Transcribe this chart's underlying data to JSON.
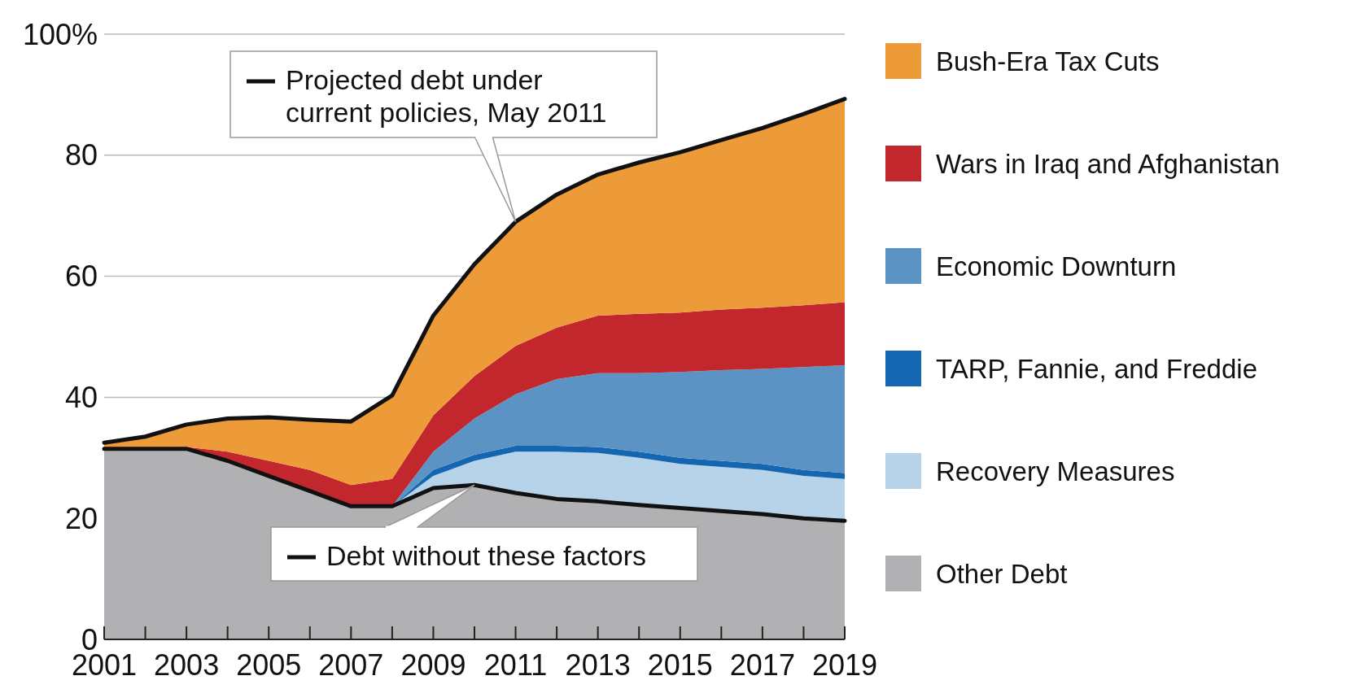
{
  "chart_data": {
    "type": "area",
    "stacked": true,
    "x": [
      2001,
      2002,
      2003,
      2004,
      2005,
      2006,
      2007,
      2008,
      2009,
      2010,
      2011,
      2012,
      2013,
      2014,
      2015,
      2016,
      2017,
      2018,
      2019
    ],
    "series": [
      {
        "name": "Other Debt",
        "color": "#b1b1b3",
        "values": [
          31.5,
          31.5,
          31.5,
          29.5,
          27,
          24.5,
          22,
          22,
          25,
          25.5,
          24.2,
          23.2,
          22.8,
          22.2,
          21.7,
          21.2,
          20.7,
          20,
          19.6
        ]
      },
      {
        "name": "Recovery Measures",
        "color": "#b7d3ea",
        "values": [
          0,
          0,
          0,
          0,
          0,
          0,
          0,
          0,
          2,
          4,
          6.8,
          7.8,
          8,
          7.8,
          7.3,
          7.3,
          7.3,
          7,
          6.9
        ]
      },
      {
        "name": "TARP, Fannie, and Freddie",
        "color": "#1466b0",
        "values": [
          0,
          0,
          0,
          0,
          0,
          0,
          0,
          0,
          1,
          1,
          1,
          1,
          1,
          1,
          1,
          1,
          1,
          1,
          1
        ]
      },
      {
        "name": "Economic Downturn",
        "color": "#5b93c5",
        "values": [
          0,
          0,
          0,
          0,
          0,
          0,
          0,
          0,
          3,
          6,
          8.5,
          11,
          12.2,
          13,
          14.2,
          15,
          15.7,
          17,
          17.8
        ]
      },
      {
        "name": "Wars in Iraq and Afghanistan",
        "color": "#c1272d",
        "values": [
          0,
          0.2,
          0.3,
          1.5,
          2.5,
          3.5,
          3.5,
          4.5,
          6,
          7,
          8,
          8.5,
          9.5,
          9.8,
          9.8,
          10,
          10.1,
          10.2,
          10.4
        ]
      },
      {
        "name": "Bush-Era Tax Cuts",
        "color": "#ec9b38",
        "values": [
          1,
          1.8,
          3.7,
          5.5,
          7.2,
          8.3,
          10.5,
          13.8,
          16.5,
          18.5,
          20.5,
          22,
          23.3,
          25,
          26.5,
          28,
          29.7,
          31.6,
          33.6
        ]
      }
    ],
    "annotations": [
      {
        "text": "Projected debt under current policies, May 2011",
        "x": 2011,
        "y": 69
      },
      {
        "text": "Debt without these factors",
        "x": 2010,
        "y": 25.5
      }
    ],
    "xlim": [
      2001,
      2019
    ],
    "xticks": [
      2001,
      {
        "value": 2002,
        "label": null
      },
      2003,
      {
        "value": 2004,
        "label": null
      },
      2005,
      {
        "value": 2006,
        "label": null
      },
      2007,
      {
        "value": 2008,
        "label": null
      },
      2009,
      {
        "value": 2010,
        "label": null
      },
      2011,
      {
        "value": 2012,
        "label": null
      },
      2013,
      {
        "value": 2014,
        "label": null
      },
      2015,
      {
        "value": 2016,
        "label": null
      },
      2017,
      {
        "value": 2018,
        "label": null
      },
      2019
    ],
    "ylim": [
      0,
      100
    ],
    "yticks": [
      0,
      20,
      40,
      60,
      80,
      {
        "value": 100,
        "label": "100%"
      }
    ],
    "grid": "y",
    "legend": "right"
  }
}
